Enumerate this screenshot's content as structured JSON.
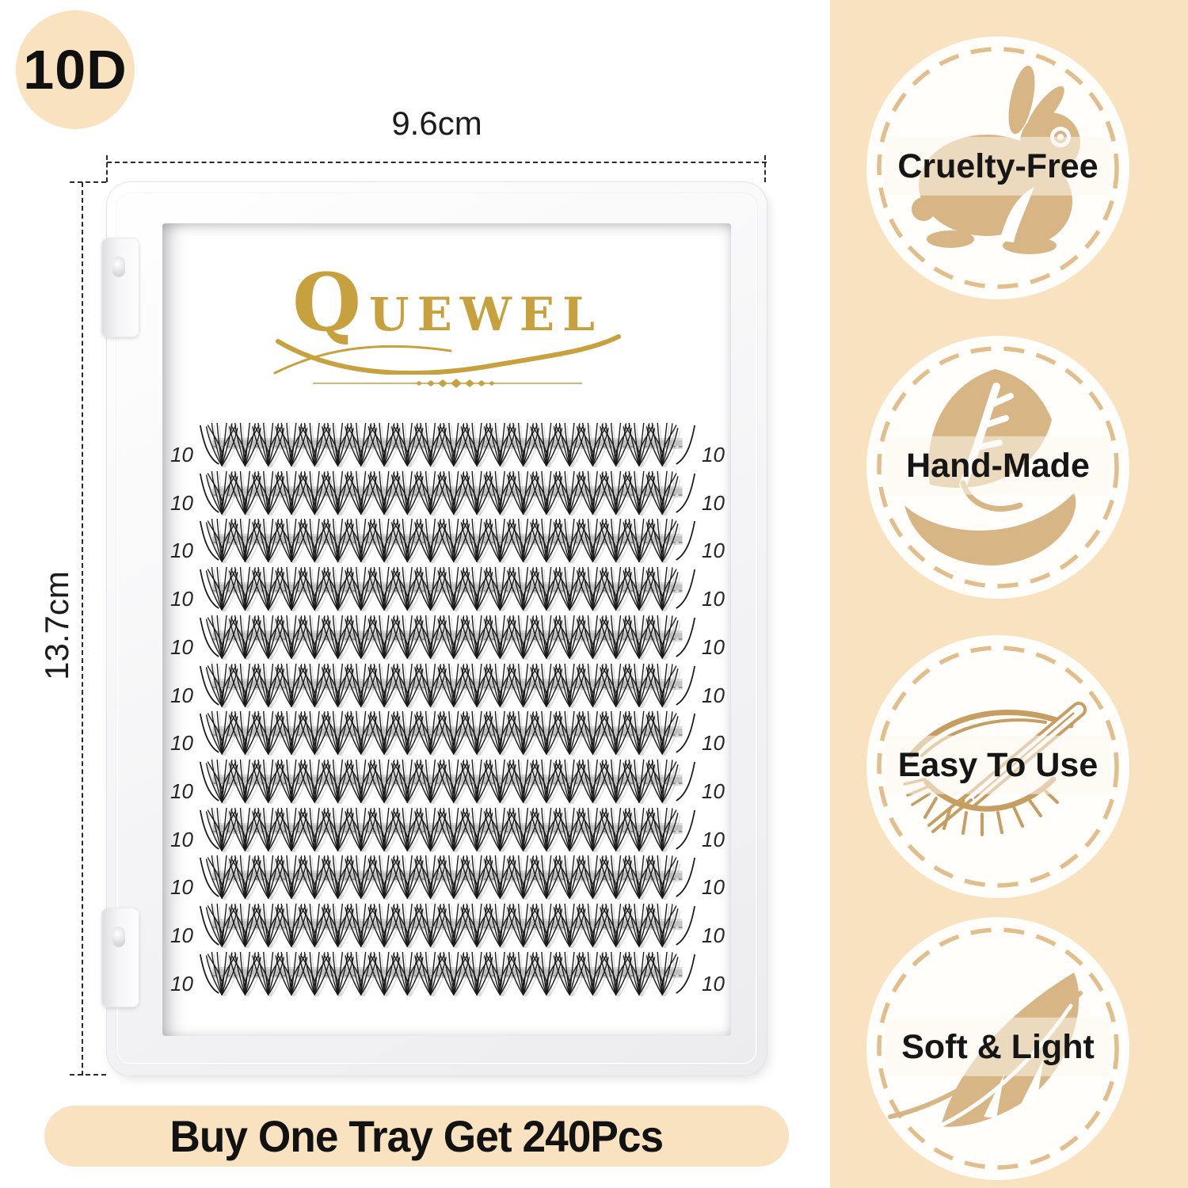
{
  "size_badge": {
    "text": "10D"
  },
  "dimensions": {
    "width": "9.6cm",
    "height": "13.7cm"
  },
  "brand": {
    "name": "QUEWEL"
  },
  "tray": {
    "row_count": 12,
    "clusters_per_row": 20,
    "row_label": "10"
  },
  "banner": {
    "text": "Buy One Tray Get 240Pcs"
  },
  "features": [
    {
      "label": "Cruelty-Free",
      "icon": "rabbit-icon"
    },
    {
      "label": "Hand-Made",
      "icon": "leaf-hand-icon"
    },
    {
      "label": "Easy To Use",
      "icon": "eye-tweezers-icon"
    },
    {
      "label": "Soft & Light",
      "icon": "feather-icon"
    }
  ],
  "colors": {
    "peach": "#F9E2C0",
    "tan": "#D8B584",
    "tan_border": "#E2BE8C",
    "gold": "#C7A13D",
    "ink": "#141414",
    "eye": "#C79E62"
  }
}
